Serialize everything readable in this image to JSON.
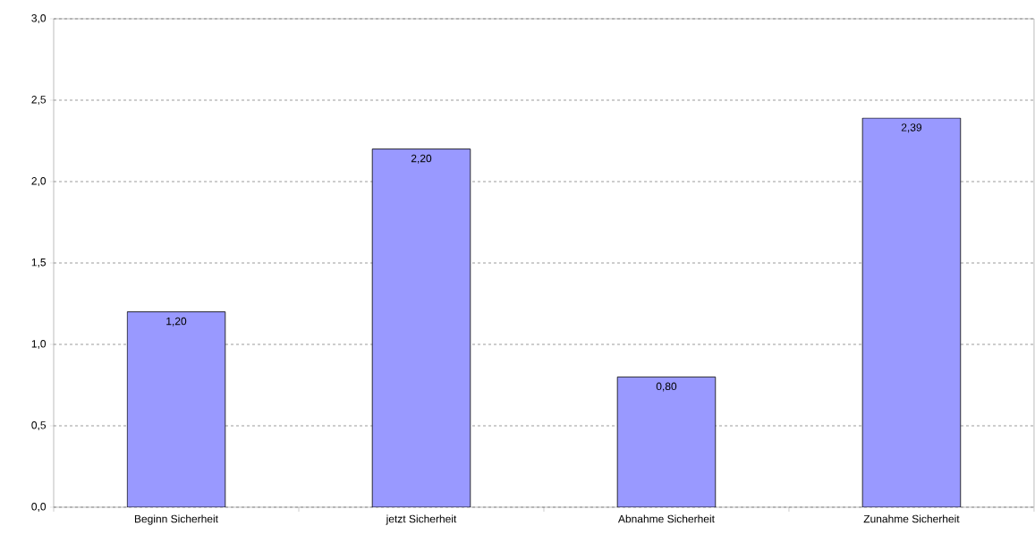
{
  "chart_data": {
    "type": "bar",
    "categories": [
      "Beginn Sicherheit",
      "jetzt Sicherheit",
      "Abnahme Sicherheit",
      "Zunahme Sicherheit"
    ],
    "values": [
      1.2,
      2.2,
      0.8,
      2.39
    ],
    "value_labels": [
      "1,20",
      "2,20",
      "0,80",
      "2,39"
    ],
    "color": "#9999ff",
    "ylim": [
      0,
      3
    ],
    "yticks": [
      {
        "value": 0,
        "label": "0,0"
      },
      {
        "value": 0.5,
        "label": "0,5"
      },
      {
        "value": 1,
        "label": "1,0"
      },
      {
        "value": 1.5,
        "label": "1,5"
      },
      {
        "value": 2,
        "label": "2,0"
      },
      {
        "value": 2.5,
        "label": "2,5"
      },
      {
        "value": 3,
        "label": "3,0"
      }
    ],
    "grid": "y"
  }
}
